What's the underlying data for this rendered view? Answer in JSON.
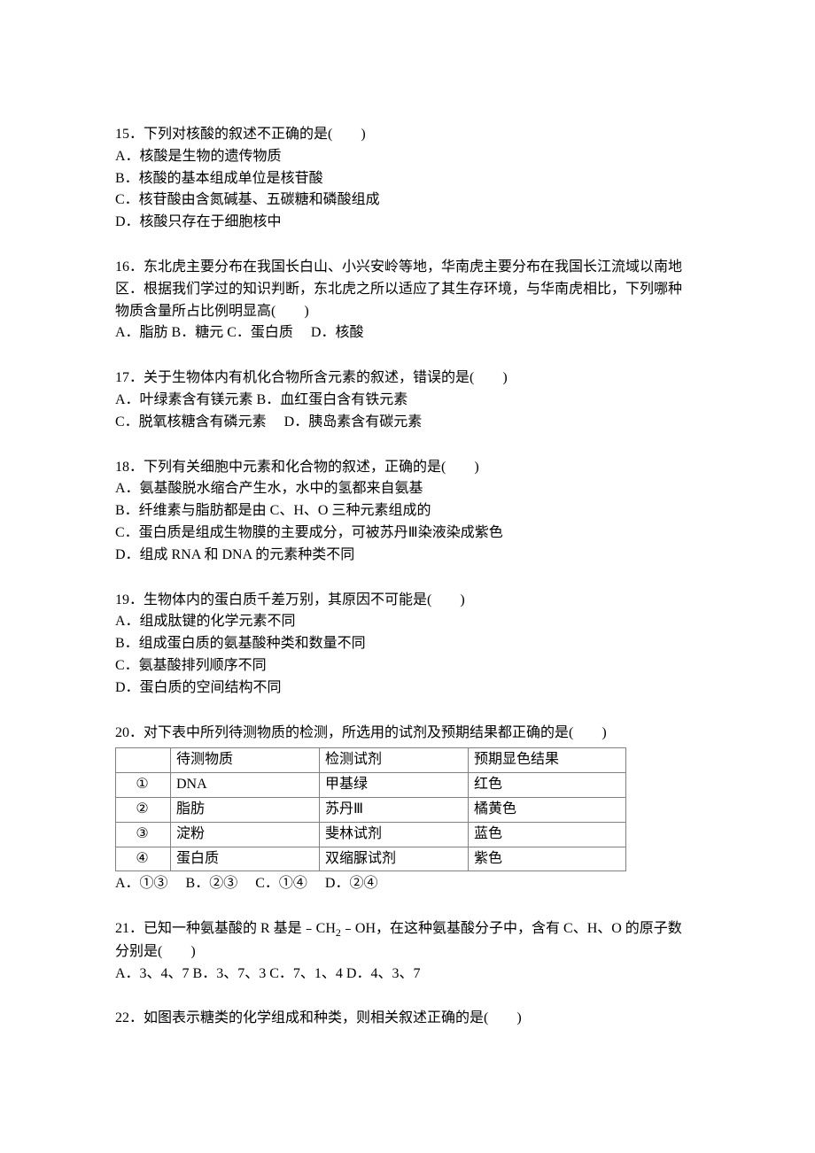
{
  "q15": {
    "stem": "15．下列对核酸的叙述不正确的是(　　)",
    "A": "A．核酸是生物的遗传物质",
    "B": "B．核酸的基本组成单位是核苷酸",
    "C": "C．核苷酸由含氮碱基、五碳糖和磷酸组成",
    "D": "D．核酸只存在于细胞核中"
  },
  "q16": {
    "stem1": "16．东北虎主要分布在我国长白山、小兴安岭等地，华南虎主要分布在我国长江流域以南地",
    "stem2": "区．根据我们学过的知识判断，东北虎之所以适应了其生存环境，与华南虎相比，下列哪种",
    "stem3": "物质含量所占比例明显高(　　)",
    "opts": "A．脂肪 B．糖元 C．蛋白质　 D．核酸"
  },
  "q17": {
    "stem": "17．关于生物体内有机化合物所含元素的叙述，错误的是(　　)",
    "line1": "A．叶绿素含有镁元素 B．血红蛋白含有铁元素",
    "line2": "C．脱氧核糖含有磷元素　 D．胰岛素含有碳元素"
  },
  "q18": {
    "stem": "18．下列有关细胞中元素和化合物的叙述，正确的是(　　)",
    "A": "A．氨基酸脱水缩合产生水，水中的氢都来自氨基",
    "B": "B．纤维素与脂肪都是由 C、H、O 三种元素组成的",
    "C": "C．蛋白质是组成生物膜的主要成分，可被苏丹Ⅲ染液染成紫色",
    "D": "D．组成 RNA 和 DNA 的元素种类不同"
  },
  "q19": {
    "stem": "19．生物体内的蛋白质千差万别，其原因不可能是(　　)",
    "A": "A．组成肽键的化学元素不同",
    "B": "B．组成蛋白质的氨基酸种类和数量不同",
    "C": "C．氨基酸排列顺序不同",
    "D": "D．蛋白质的空间结构不同"
  },
  "q20": {
    "stem": "20．对下表中所列待测物质的检测，所选用的试剂及预期结果都正确的是(　　)",
    "headers": {
      "c0": "",
      "c1": "待测物质",
      "c2": "检测试剂",
      "c3": "预期显色结果"
    },
    "rows": [
      {
        "idx": "①",
        "sub": "DNA",
        "rea": "甲基绿",
        "res": "红色"
      },
      {
        "idx": "②",
        "sub": "脂肪",
        "rea": "苏丹Ⅲ",
        "res": "橘黄色"
      },
      {
        "idx": "③",
        "sub": "淀粉",
        "rea": "斐林试剂",
        "res": "蓝色"
      },
      {
        "idx": "④",
        "sub": "蛋白质",
        "rea": "双缩脲试剂",
        "res": "紫色"
      }
    ],
    "opts": "A．①③　 B．②③　 C．①④　 D．②④"
  },
  "q21": {
    "stem1_a": "21．已知一种氨基酸的 R 基是﹣CH",
    "stem1_b": "﹣OH，在这种氨基酸分子中，含有 C、H、O 的原子数",
    "stem2": "分别是(　　)",
    "opts": "A．3、4、7 B．3、7、3 C．7、1、4 D．4、3、7",
    "sub2": "2"
  },
  "q22": {
    "stem": "22．如图表示糖类的化学组成和种类，则相关叙述正确的是(　　)"
  }
}
